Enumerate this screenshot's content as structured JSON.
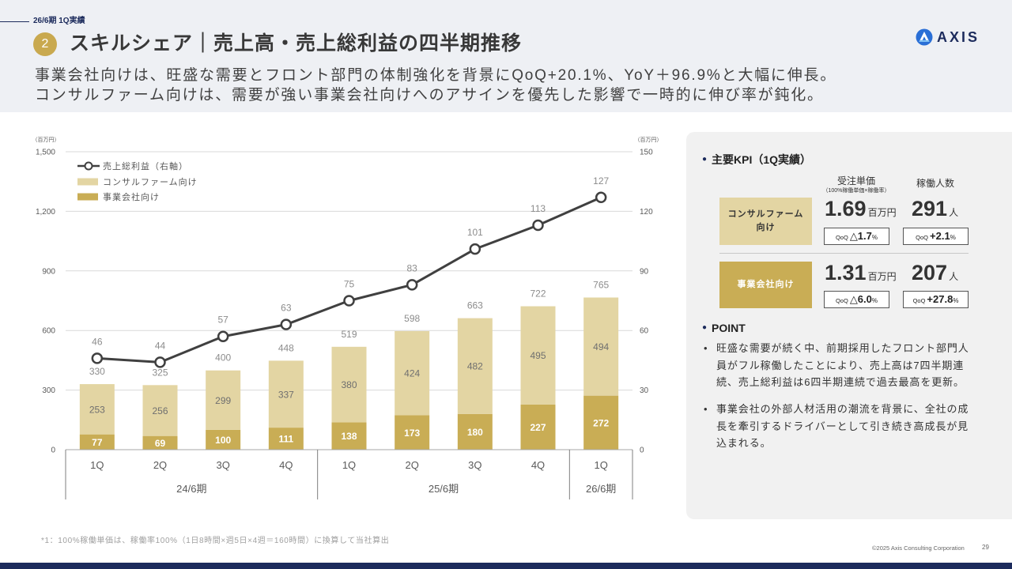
{
  "header": {
    "period_tag": "26/6期 1Q実績",
    "section_number": "2",
    "title": "スキルシェア｜売上高・売上総利益の四半期推移",
    "subtitle": [
      "事業会社向けは、旺盛な需要とフロント部門の体制強化を背景にQoQ+20.1%、YoY＋96.9%と大幅に伸長。",
      "コンサルファーム向けは、需要が強い事業会社向けへのアサインを優先した影響で一時的に伸び率が鈍化。"
    ],
    "logo_text": "AXIS"
  },
  "chart_data": {
    "type": "bar",
    "stacked": true,
    "categories": [
      "1Q",
      "2Q",
      "3Q",
      "4Q",
      "1Q",
      "2Q",
      "3Q",
      "4Q",
      "1Q"
    ],
    "period_groups": [
      {
        "label": "24/6期",
        "quarters": 4
      },
      {
        "label": "25/6期",
        "quarters": 4
      },
      {
        "label": "26/6期",
        "quarters": 1
      }
    ],
    "series": [
      {
        "name": "事業会社向け",
        "values": [
          77,
          69,
          100,
          111,
          138,
          173,
          180,
          227,
          272
        ]
      },
      {
        "name": "コンサルファーム向け",
        "values": [
          253,
          256,
          299,
          337,
          380,
          424,
          482,
          495,
          494
        ]
      }
    ],
    "totals": [
      330,
      325,
      400,
      448,
      519,
      598,
      663,
      722,
      765
    ],
    "line_series": {
      "name": "売上総利益（右軸）",
      "values": [
        46,
        44,
        57,
        63,
        75,
        83,
        101,
        113,
        127
      ]
    },
    "left_axis": {
      "unit": "（百万円）",
      "range": [
        0,
        1500
      ],
      "ticks": [
        "0",
        "300",
        "600",
        "900",
        "1,200",
        "1,500"
      ]
    },
    "right_axis": {
      "unit": "（百万円）",
      "range": [
        0,
        150
      ],
      "ticks": [
        "0",
        "30",
        "60",
        "90",
        "120",
        "150"
      ]
    },
    "grid": true,
    "legend_position": "top-left"
  },
  "kpi": {
    "heading": "主要KPI（1Q実績）",
    "unit_price_header": "受注単価",
    "unit_price_note": "（100%稼働単価×稼働率）",
    "headcount_header": "稼働人数",
    "qoq_prefix": "QoQ",
    "percent_sign": "%",
    "rows": [
      {
        "segment_lines": [
          "コンサルファーム",
          "向け"
        ],
        "unit_price": "1.69",
        "unit_price_unit": "百万円",
        "unit_price_qoq": "△1.7",
        "headcount": "291",
        "headcount_unit": "人",
        "headcount_qoq": "+2.1"
      },
      {
        "segment_lines": [
          "事業会社向け"
        ],
        "unit_price": "1.31",
        "unit_price_unit": "百万円",
        "unit_price_qoq": "△6.0",
        "headcount": "207",
        "headcount_unit": "人",
        "headcount_qoq": "+27.8"
      }
    ]
  },
  "point": {
    "heading": "POINT",
    "items": [
      "旺盛な需要が続く中、前期採用したフロント部門人員がフル稼働したことにより、売上高は7四半期連続、売上総利益は6四半期連続で過去最高を更新。",
      "事業会社の外部人材活用の潮流を背景に、全社の成長を牽引するドライバーとして引き続き高成長が見込まれる。"
    ]
  },
  "footer": {
    "note": "*1：100%稼働単価は、稼働率100%（1日8時間×週5日×4週＝160時間）に換算して当社算出",
    "copyright": "©2025 Axis Consulting Corporation",
    "page_number": "29"
  },
  "colors": {
    "navy": "#1c2b5c",
    "gold": "#c9ad55",
    "beige": "#e3d5a3",
    "profit_line": "#404040",
    "header_band": "#eef0f4",
    "panel": "#f1f1f1"
  }
}
